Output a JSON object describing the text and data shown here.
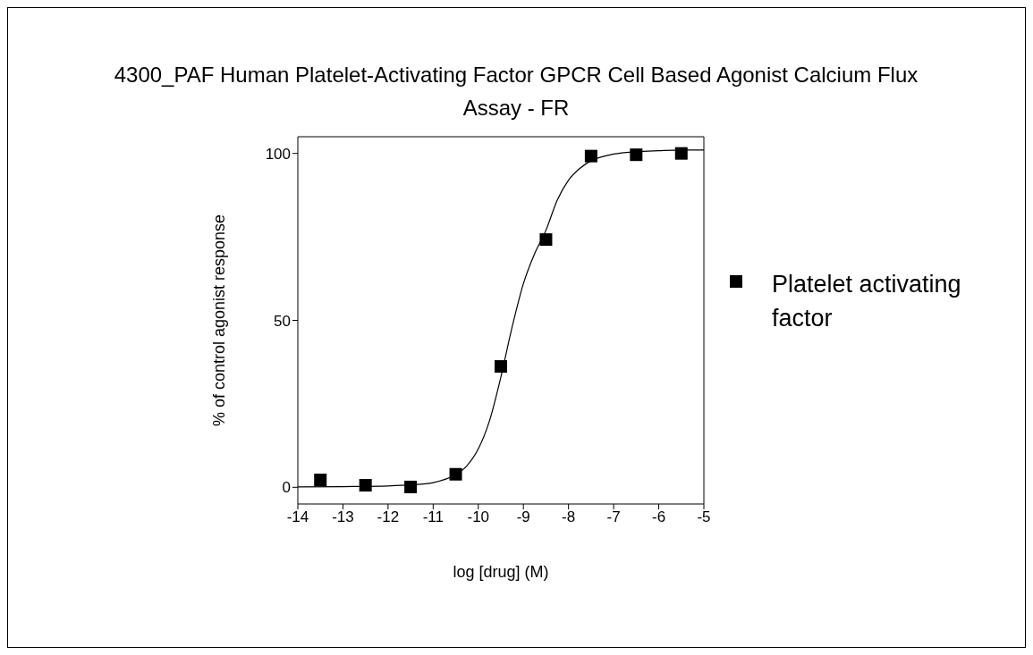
{
  "chart_data": {
    "type": "scatter",
    "title": "4300_PAF Human Platelet-Activating Factor GPCR Cell Based Agonist Calcium Flux Assay - FR",
    "xlabel": "log [drug] (M)",
    "ylabel": "% of control agonist response",
    "series": [
      {
        "name": "Platelet activating factor",
        "color": "#000000",
        "x": [
          -13.5,
          -12.5,
          -11.5,
          -10.5,
          -9.5,
          -8.5,
          -7.5,
          -6.5,
          -5.5
        ],
        "values": [
          2.2,
          0.6,
          0.1,
          3.9,
          36.2,
          74.2,
          99.2,
          99.6,
          100
        ]
      },
      {
        "type": "line",
        "color": "#000000",
        "marker": "none",
        "x": [
          -14,
          -13,
          -12,
          -11.5,
          -11,
          -10.5,
          -10.25,
          -10,
          -9.75,
          -9.5,
          -9.25,
          -9,
          -8.75,
          -8.5,
          -8.25,
          -8,
          -7.75,
          -7.5,
          -7.25,
          -7,
          -6.5,
          -6,
          -5.5,
          -5
        ],
        "values": [
          0.1,
          0.2,
          0.4,
          0.7,
          1.4,
          3.8,
          6.5,
          11.5,
          20,
          33,
          48,
          61,
          70,
          77,
          86,
          92,
          95.5,
          97.8,
          99,
          99.8,
          100.5,
          100.8,
          101,
          101
        ]
      }
    ],
    "xlim": [
      -14,
      -5
    ],
    "xticks": [
      -14,
      -13,
      -12,
      -11,
      -10,
      -9,
      -8,
      -7,
      -6,
      -5
    ],
    "ylim": [
      -5,
      105
    ],
    "yticks": [
      0,
      50,
      100
    ],
    "marker": "square",
    "legend": "right",
    "grid": false
  }
}
